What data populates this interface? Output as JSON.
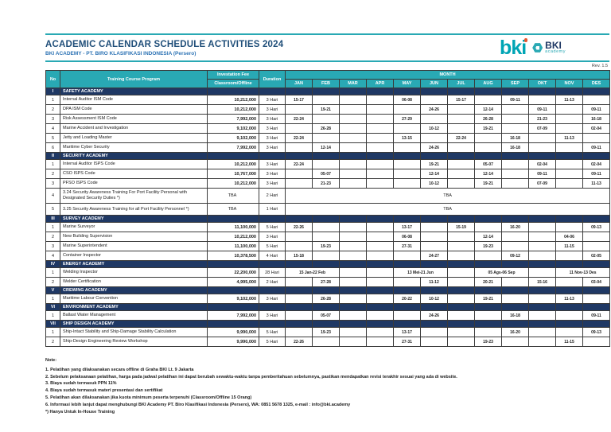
{
  "header": {
    "title": "ACADEMIC CALENDAR SCHEDULE ACTIVITIES 2024",
    "subtitle": "BKI ACADEMY - PT. BIRO KLASIFIKASI INDONESIA (Persero)",
    "rev": "Rev. 1.5",
    "logo": {
      "bki_word": "bki",
      "academy_name": "BKI",
      "academy_sub": "academy"
    }
  },
  "colors": {
    "teal": "#29a9b4",
    "navy": "#1f3864",
    "orange": "#ed7d31",
    "title_blue": "#1f4e79",
    "subtitle_blue": "#2e74b5"
  },
  "table": {
    "columns": {
      "no": "No",
      "program": "Training Course Program",
      "fee_top": "Investation Fee",
      "fee_bottom": "Classroom/Offline",
      "duration": "Duration",
      "month_group": "MONTH"
    },
    "months": [
      "JAN",
      "FEB",
      "MAR",
      "APR",
      "MAY",
      "JUN",
      "JUL",
      "AUG",
      "SEP",
      "OKT",
      "NOV",
      "DES"
    ],
    "sections": [
      {
        "num": "I",
        "name": "SAFETY ACADEMY",
        "rows": [
          {
            "no": "1",
            "program": "Internal Auditor ISM Code",
            "fee": "10,212,000",
            "duration": "3 Hari",
            "months": {
              "type": "cells",
              "values": [
                "15-17",
                "",
                "",
                "",
                "06-08",
                "",
                "15-17",
                "",
                "09-11",
                "",
                "11-13",
                ""
              ]
            }
          },
          {
            "no": "2",
            "program": "DPA ISM Code",
            "fee": "10,212,000",
            "duration": "3 Hari",
            "months": {
              "type": "cells",
              "values": [
                "",
                "19-21",
                "",
                "",
                "",
                "24-26",
                "",
                "12-14",
                "",
                "09-11",
                "",
                "09-11"
              ]
            }
          },
          {
            "no": "3",
            "program": "Risk Assessment ISM Code",
            "fee": "7,992,000",
            "duration": "3 Hari",
            "months": {
              "type": "cells",
              "values": [
                "22-24",
                "",
                "",
                "",
                "27-29",
                "",
                "",
                "26-28",
                "",
                "21-23",
                "",
                "16-18"
              ]
            }
          },
          {
            "no": "4",
            "program": "Marine Accident and Investigation",
            "fee": "9,102,000",
            "duration": "3 Hari",
            "months": {
              "type": "cells",
              "values": [
                "",
                "26-28",
                "",
                "",
                "",
                "10-12",
                "",
                "19-21",
                "",
                "07-09",
                "",
                "02-04"
              ]
            }
          },
          {
            "no": "5",
            "program": "Jetty and Loading Master",
            "fee": "9,102,000",
            "duration": "3 Hari",
            "months": {
              "type": "cells",
              "values": [
                "22-24",
                "",
                "",
                "",
                "13-15",
                "",
                "22-24",
                "",
                "16-18",
                "",
                "11-13",
                ""
              ]
            }
          },
          {
            "no": "6",
            "program": "Maritime Cyber Security",
            "fee": "7,992,000",
            "duration": "3 Hari",
            "months": {
              "type": "cells",
              "values": [
                "",
                "12-14",
                "",
                "",
                "",
                "24-26",
                "",
                "",
                "16-18",
                "",
                "",
                "09-11"
              ]
            }
          }
        ]
      },
      {
        "num": "II",
        "name": "SECURITY ACADEMY",
        "rows": [
          {
            "no": "1",
            "program": "Internal Auditor ISPS Code",
            "fee": "10,212,000",
            "duration": "3 Hari",
            "months": {
              "type": "cells",
              "values": [
                "22-24",
                "",
                "",
                "",
                "",
                "19-21",
                "",
                "05-07",
                "",
                "02-04",
                "",
                "02-04"
              ]
            }
          },
          {
            "no": "2",
            "program": "CSO ISPS Code",
            "fee": "10,767,000",
            "duration": "3 Hari",
            "months": {
              "type": "cells",
              "values": [
                "",
                "05-07",
                "",
                "",
                "",
                "12-14",
                "",
                "12-14",
                "",
                "09-11",
                "",
                "09-11"
              ]
            }
          },
          {
            "no": "3",
            "program": "PFSO ISPS Code",
            "fee": "10,212,000",
            "duration": "3 Hari",
            "months": {
              "type": "cells",
              "values": [
                "",
                "21-23",
                "",
                "",
                "",
                "10-12",
                "",
                "19-21",
                "",
                "07-09",
                "",
                "11-13"
              ]
            }
          },
          {
            "no": "4",
            "h": "tall",
            "program": "3.24 Security Awareness Training For Port Facility Personal with Designated Security Duties *)",
            "fee": "TBA",
            "duration": "2 Hari",
            "months": {
              "type": "merged",
              "label": "TBA"
            }
          },
          {
            "no": "5",
            "h": "med",
            "program": "3.25 Security Awareness Training for all Port Facility Personnel *)",
            "fee": "TBA",
            "duration": "1 Hari",
            "months": {
              "type": "merged",
              "label": "TBA"
            }
          }
        ]
      },
      {
        "num": "III",
        "name": "SURVEY ACADEMY",
        "rows": [
          {
            "no": "1",
            "program": "Marine Surveyor",
            "fee": "11,100,000",
            "duration": "5 Hari",
            "months": {
              "type": "cells",
              "values": [
                "22-26",
                "",
                "",
                "",
                "13-17",
                "",
                "15-19",
                "",
                "16-20",
                "",
                "",
                "09-13"
              ]
            }
          },
          {
            "no": "2",
            "program": "New Building Supervision",
            "fee": "10,212,000",
            "duration": "3 Hari",
            "months": {
              "type": "cells",
              "values": [
                "",
                "",
                "",
                "",
                "06-08",
                "",
                "",
                "12-14",
                "",
                "",
                "04-06",
                ""
              ]
            }
          },
          {
            "no": "3",
            "program": "Marine Superintendent",
            "fee": "11,100,000",
            "duration": "5 Hari",
            "months": {
              "type": "cells",
              "values": [
                "",
                "19-23",
                "",
                "",
                "27-31",
                "",
                "",
                "19-23",
                "",
                "",
                "11-15",
                ""
              ]
            }
          },
          {
            "no": "4",
            "program": "Container Inspector",
            "fee": "10,378,500",
            "duration": "4 Hari",
            "months": {
              "type": "cells",
              "values": [
                "15-18",
                "",
                "",
                "",
                "",
                "24-27",
                "",
                "",
                "09-12",
                "",
                "",
                "02-05"
              ]
            }
          }
        ]
      },
      {
        "num": "IV",
        "name": "ENERGY ACADEMY",
        "rows": [
          {
            "no": "1",
            "program": "Welding Inspector",
            "fee": "22,200,000",
            "duration": "28 Hari",
            "months": {
              "type": "spans",
              "spans": [
                {
                  "cols": 2,
                  "label": "15 Jan-22 Feb",
                  "filled": true
                },
                {
                  "cols": 1,
                  "label": "",
                  "filled": false
                },
                {
                  "cols": 1,
                  "label": "",
                  "filled": false
                },
                {
                  "cols": 2,
                  "label": "13 Mei-21 Jun",
                  "filled": true
                },
                {
                  "cols": 1,
                  "label": "",
                  "filled": false
                },
                {
                  "cols": 2,
                  "label": "05 Ags-06 Sep",
                  "filled": true
                },
                {
                  "cols": 1,
                  "label": "",
                  "filled": false
                },
                {
                  "cols": 2,
                  "label": "11 Nov-13 Des",
                  "filled": true
                }
              ]
            }
          },
          {
            "no": "2",
            "program": "Welder Certification",
            "fee": "4,995,000",
            "duration": "2 Hari",
            "months": {
              "type": "cells",
              "values": [
                "",
                "27-28",
                "",
                "",
                "",
                "11-12",
                "",
                "20-21",
                "",
                "15-16",
                "",
                "03-04"
              ]
            }
          }
        ]
      },
      {
        "num": "V",
        "name": "CREWING ACADEMY",
        "rows": [
          {
            "no": "1",
            "program": "Maritime Labour Convention",
            "fee": "9,102,000",
            "duration": "3 Hari",
            "months": {
              "type": "cells",
              "values": [
                "",
                "26-28",
                "",
                "",
                "20-22",
                "10-12",
                "",
                "19-21",
                "",
                "",
                "11-13",
                ""
              ]
            }
          }
        ]
      },
      {
        "num": "VI",
        "name": "ENVIRONMENT ACADEMY",
        "rows": [
          {
            "no": "1",
            "program": "Ballast Water Management",
            "fee": "7,992,000",
            "duration": "3 Hari",
            "months": {
              "type": "cells",
              "values": [
                "",
                "05-07",
                "",
                "",
                "",
                "24-26",
                "",
                "",
                "16-18",
                "",
                "",
                "09-11"
              ]
            }
          }
        ]
      },
      {
        "num": "VII",
        "name": "SHIP DESIGN ACADEMY",
        "rows": [
          {
            "no": "1",
            "program": "Ship-Intact Stability and Ship-Damage Stability Calculation",
            "fee": "9,990,000",
            "duration": "5 Hari",
            "months": {
              "type": "cells",
              "values": [
                "",
                "19-23",
                "",
                "",
                "13-17",
                "",
                "",
                "",
                "16-20",
                "",
                "",
                "09-13"
              ]
            }
          },
          {
            "no": "2",
            "program": "Ship-Design Engineering Review Workshop",
            "fee": "9,990,000",
            "duration": "5 Hari",
            "months": {
              "type": "cells",
              "values": [
                "22-26",
                "",
                "",
                "",
                "27-31",
                "",
                "",
                "19-23",
                "",
                "",
                "11-15",
                ""
              ]
            }
          }
        ]
      }
    ]
  },
  "notes": {
    "title": "Note:",
    "items": [
      "1. Pelatihan yang dilaksanakan secara offline di Graha BKI Lt. 9 Jakarta",
      "2. Sebelum pelaksanaan pelatihan, harga pada jadwal pelatihan ini dapat berubah sewaktu-waktu tanpa pemberitahuan sebelumnya, pastikan mendapatkan revisi terakhir sesuai yang ada di website.",
      "3. Biaya sudah termasuk PPN 11%",
      "4. Biaya sudah termasuk materi presentasi dan sertifikat",
      "5. Pelatihan akan dilaksanakan jika kuota minimum peserta terpenuhi (Classroom/Offline 15 Orang)",
      "6. Informasi lebih lanjut dapat menghubungi BKI Academy PT. Biro Klasifikasi Indonesia (Persero), WA: 0851 5678 1325, e-mail : info@bki.academy",
      "*) Hanya Untuk In-House Training"
    ]
  }
}
